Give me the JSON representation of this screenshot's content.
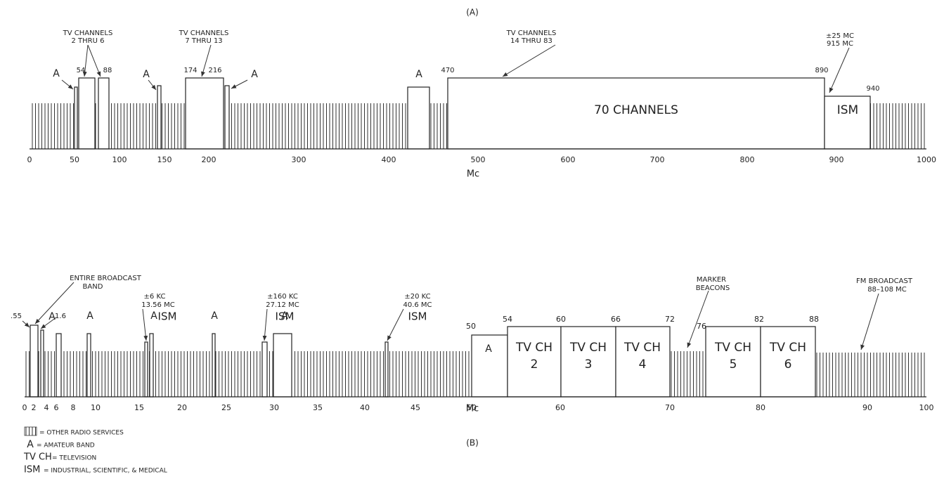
{
  "panel_a": {
    "texts": [
      "(A)",
      "TV CHANNELS",
      "2 THRU 6",
      "TV CHANNELS",
      "7 THRU 13",
      "TV CHANNELS",
      "14 THRU 83",
      "±25 MC",
      "915 MC",
      "54",
      "88",
      "174",
      "216",
      "470",
      "890",
      "940",
      "A",
      "A",
      "A",
      "A",
      "70 CHANNELS",
      "ISM",
      "Mc"
    ],
    "ticks": [
      "0",
      "50",
      "100",
      "150",
      "200",
      "300",
      "400",
      "500",
      "600",
      "700",
      "800",
      "900",
      "1000"
    ]
  },
  "panel_b": {
    "texts": [
      ".55",
      "1.6",
      "ENTIRE BROADCAST",
      "BAND",
      "A",
      "A",
      "A",
      "A",
      "A",
      "±6 KC",
      "13.56 MC",
      "ISM",
      "±160 KC",
      "27.12 MC",
      "ISM",
      "±20 KC",
      "40.6 MC",
      "ISM",
      "50",
      "54",
      "60",
      "66",
      "72",
      "76",
      "82",
      "88",
      "A",
      "TV CH",
      "2",
      "TV CH",
      "3",
      "TV CH",
      "4",
      "TV CH",
      "5",
      "TV CH",
      "6",
      "MARKER",
      "BEACONS",
      "FM BROADCAST",
      "88–108 MC",
      "Mc",
      "(B)"
    ],
    "ticks": [
      "0",
      "2",
      "4",
      "6",
      "8",
      "10",
      "15",
      "20",
      "25",
      "30",
      "35",
      "40",
      "45",
      "50",
      "60",
      "70",
      "80",
      "90",
      "100"
    ]
  },
  "legend": [
    "= OTHER RADIO SERVICES",
    "A",
    "= AMATEUR BAND",
    "TV CH",
    "= TELEVISION",
    "ISM",
    "= INDUSTRIAL, SCIENTIFIC, & MEDICAL"
  ]
}
